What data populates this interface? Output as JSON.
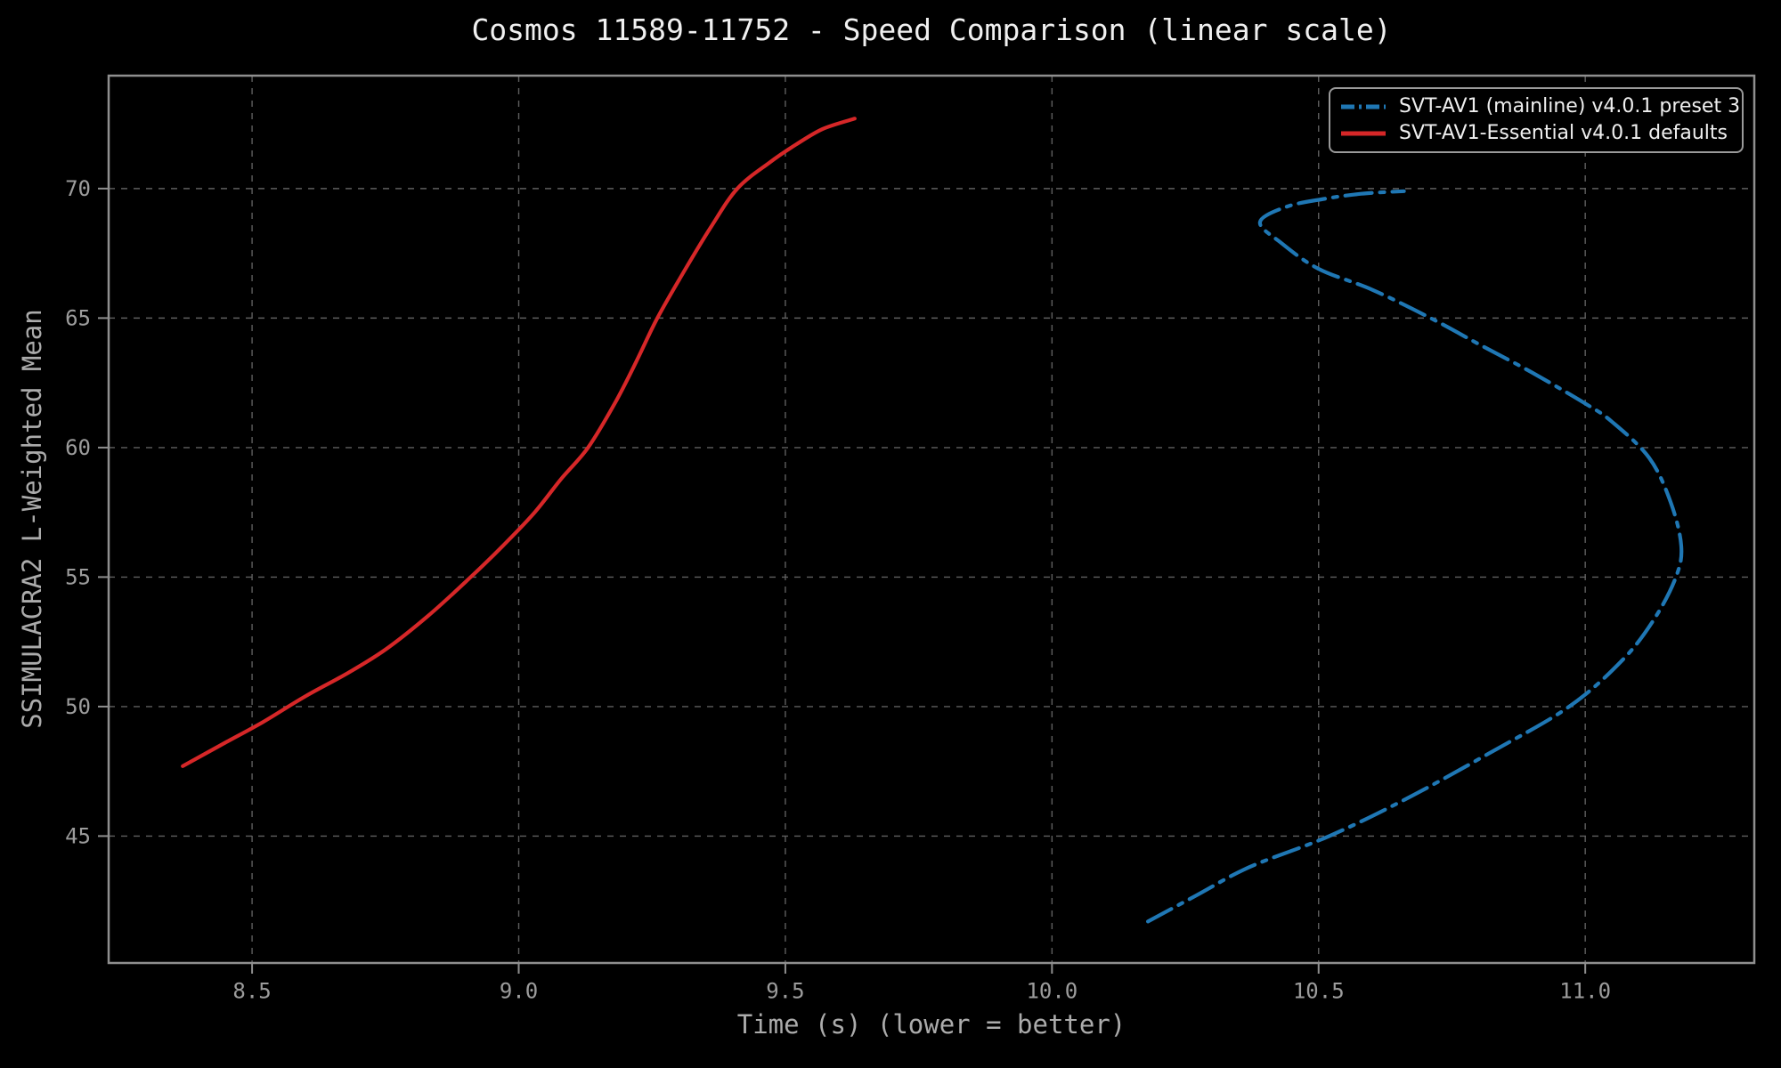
{
  "chart_data": {
    "type": "line",
    "title": "Cosmos 11589-11752 - Speed Comparison (linear scale)",
    "xlabel": "Time (s) (lower = better)",
    "ylabel": "SSIMULACRA2 L-Weighted Mean",
    "xlim": [
      8.231,
      11.317
    ],
    "ylim": [
      40.1,
      74.36
    ],
    "grid": true,
    "legend_position": "upper right",
    "x_ticks": {
      "values": [
        8.5,
        9.0,
        9.5,
        10.0,
        10.5,
        11.0
      ],
      "labels": [
        "8.5",
        "9.0",
        "9.5",
        "10.0",
        "10.5",
        "11.0"
      ]
    },
    "y_ticks": {
      "values": [
        45,
        50,
        55,
        60,
        65,
        70
      ],
      "labels": [
        "45",
        "50",
        "55",
        "60",
        "65",
        "70"
      ]
    },
    "series": [
      {
        "name": "SVT-AV1 (mainline) v4.0.1 preset 3",
        "color": "#1f77b4",
        "line_style": "dashdot",
        "points": [
          [
            10.18,
            41.7
          ],
          [
            10.27,
            42.7
          ],
          [
            10.37,
            43.8
          ],
          [
            10.52,
            45.0
          ],
          [
            10.67,
            46.5
          ],
          [
            10.82,
            48.2
          ],
          [
            10.97,
            50.0
          ],
          [
            11.07,
            51.8
          ],
          [
            11.13,
            53.4
          ],
          [
            11.17,
            55.0
          ],
          [
            11.18,
            56.2
          ],
          [
            11.16,
            57.9
          ],
          [
            11.12,
            59.6
          ],
          [
            11.05,
            61.0
          ],
          [
            11.0,
            61.7
          ],
          [
            10.9,
            62.9
          ],
          [
            10.8,
            64.0
          ],
          [
            10.71,
            65.0
          ],
          [
            10.6,
            66.1
          ],
          [
            10.5,
            66.9
          ],
          [
            10.43,
            67.9
          ],
          [
            10.39,
            68.7
          ],
          [
            10.44,
            69.3
          ],
          [
            10.51,
            69.6
          ],
          [
            10.58,
            69.8
          ],
          [
            10.66,
            69.9
          ]
        ]
      },
      {
        "name": "SVT-AV1-Essential v4.0.1 defaults",
        "color": "#d62728",
        "line_style": "solid",
        "points": [
          [
            8.37,
            47.7
          ],
          [
            8.44,
            48.5
          ],
          [
            8.52,
            49.4
          ],
          [
            8.6,
            50.4
          ],
          [
            8.68,
            51.3
          ],
          [
            8.75,
            52.2
          ],
          [
            8.83,
            53.5
          ],
          [
            8.91,
            55.0
          ],
          [
            8.97,
            56.2
          ],
          [
            9.03,
            57.5
          ],
          [
            9.08,
            58.8
          ],
          [
            9.13,
            60.0
          ],
          [
            9.18,
            61.7
          ],
          [
            9.22,
            63.3
          ],
          [
            9.26,
            65.0
          ],
          [
            9.31,
            66.8
          ],
          [
            9.36,
            68.5
          ],
          [
            9.41,
            70.0
          ],
          [
            9.47,
            71.0
          ],
          [
            9.52,
            71.7
          ],
          [
            9.57,
            72.3
          ],
          [
            9.63,
            72.7
          ]
        ]
      }
    ]
  },
  "style": {
    "background": "#000000",
    "title_color": "#f0f0f0",
    "label_color": "#ababab",
    "tick_color": "#9c9c9c",
    "spine_color": "#8f8f8f",
    "grid_color": "#5f5f5f",
    "legend_border": "#9a9a9a",
    "legend_text": "#efefef"
  }
}
